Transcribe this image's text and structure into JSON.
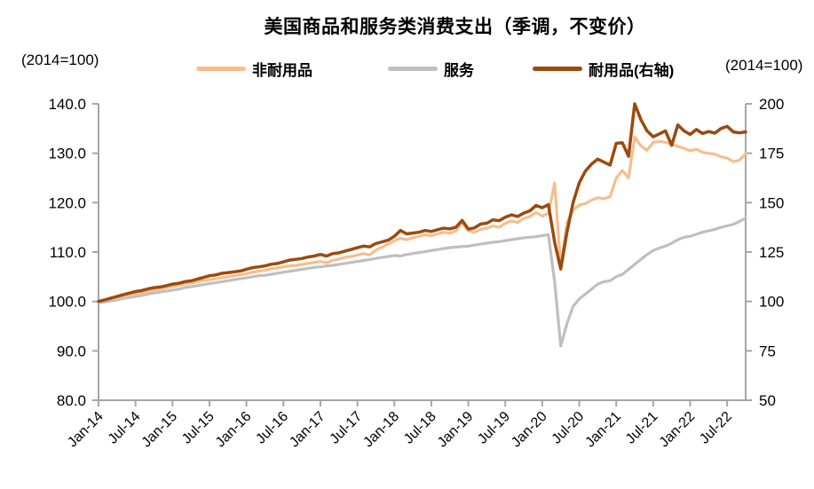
{
  "title": "美国商品和服务类消费支出（季调，不变价）",
  "left_axis_unit": "(2014=100)",
  "right_axis_unit": "(2014=100)",
  "colors": {
    "axis": "#A6A6A6",
    "text": "#000000"
  },
  "chart_data": {
    "type": "line",
    "title": "美国商品和服务类消费支出（季调，不变价）",
    "x_start": "Jan-14",
    "x_end": "Oct-22",
    "x_frequency": "monthly",
    "x_tick_interval_months": 6,
    "x_tick_labels": [
      "Jan-14",
      "Jul-14",
      "Jan-15",
      "Jul-15",
      "Jan-16",
      "Jul-16",
      "Jan-17",
      "Jul-17",
      "Jan-18",
      "Jul-18",
      "Jan-19",
      "Jul-19",
      "Jan-20",
      "Jul-20",
      "Jan-21",
      "Jul-21",
      "Jan-22",
      "Jul-22"
    ],
    "legend_position": "top",
    "grid": false,
    "left_axis": {
      "label": "(2014=100)",
      "min": 80,
      "max": 140,
      "tick_values": [
        140,
        130,
        120,
        110,
        100,
        90,
        80
      ],
      "tick_labels": [
        "140.0",
        "130.0",
        "120.0",
        "110.0",
        "100.0",
        "90.0",
        "80.0"
      ]
    },
    "right_axis": {
      "label": "(2014=100)",
      "min": 50,
      "max": 200,
      "tick_values": [
        200,
        175,
        150,
        125,
        100,
        75,
        50
      ],
      "tick_labels": [
        "200",
        "175",
        "150",
        "125",
        "100",
        "75",
        "50"
      ]
    },
    "series": [
      {
        "name": "服务",
        "axis": "left",
        "color": "#BFBFBF",
        "width": 3.2,
        "values": [
          99.7,
          99.9,
          100.1,
          100.3,
          100.6,
          100.8,
          101.0,
          101.2,
          101.5,
          101.7,
          101.9,
          102.1,
          102.3,
          102.5,
          102.8,
          103.0,
          103.2,
          103.4,
          103.6,
          103.8,
          104.0,
          104.2,
          104.4,
          104.6,
          104.8,
          105.0,
          105.2,
          105.3,
          105.5,
          105.7,
          105.9,
          106.1,
          106.3,
          106.5,
          106.7,
          106.9,
          107.0,
          107.2,
          107.3,
          107.5,
          107.7,
          107.9,
          108.1,
          108.3,
          108.5,
          108.7,
          108.9,
          109.1,
          109.3,
          109.2,
          109.5,
          109.7,
          109.9,
          110.1,
          110.3,
          110.5,
          110.7,
          110.9,
          111.0,
          111.1,
          111.2,
          111.4,
          111.6,
          111.8,
          112.0,
          112.1,
          112.3,
          112.5,
          112.7,
          112.9,
          113.0,
          113.1,
          113.3,
          113.5,
          104.0,
          91.0,
          95.5,
          99.0,
          100.5,
          101.5,
          102.5,
          103.5,
          104.0,
          104.2,
          105.0,
          105.5,
          106.5,
          107.5,
          108.5,
          109.5,
          110.3,
          110.8,
          111.2,
          111.8,
          112.5,
          113.0,
          113.2,
          113.6,
          114.0,
          114.3,
          114.6,
          115.0,
          115.3,
          115.6,
          116.2,
          116.9
        ]
      },
      {
        "name": "非耐用品",
        "axis": "left",
        "color": "#F6BE8D",
        "width": 3.2,
        "values": [
          100.0,
          100.2,
          100.5,
          100.7,
          101.0,
          101.2,
          101.5,
          101.7,
          102.0,
          102.3,
          102.5,
          102.8,
          103.0,
          103.3,
          103.5,
          103.7,
          104.0,
          104.2,
          104.4,
          104.6,
          104.8,
          105.0,
          105.2,
          105.4,
          105.6,
          105.9,
          106.1,
          106.3,
          106.6,
          106.8,
          107.0,
          107.2,
          107.3,
          107.5,
          107.7,
          107.9,
          108.1,
          107.8,
          108.3,
          108.6,
          108.9,
          109.1,
          109.4,
          109.7,
          109.4,
          110.4,
          111.0,
          111.6,
          112.3,
          112.8,
          112.5,
          112.9,
          113.2,
          113.5,
          113.3,
          113.7,
          114.0,
          113.8,
          114.3,
          115.9,
          114.3,
          114.0,
          114.6,
          114.8,
          115.3,
          115.0,
          115.8,
          116.3,
          116.0,
          116.8,
          117.2,
          118.0,
          117.3,
          117.8,
          124.0,
          107.0,
          116.0,
          118.5,
          119.5,
          119.8,
          120.5,
          121.0,
          120.8,
          121.2,
          125.0,
          126.5,
          125.0,
          133.3,
          131.5,
          130.6,
          132.2,
          132.4,
          132.2,
          131.8,
          131.4,
          131.0,
          130.5,
          130.8,
          130.2,
          130.0,
          129.8,
          129.3,
          129.0,
          128.3,
          128.6,
          129.9
        ]
      },
      {
        "name": "耐用品(右轴)",
        "axis": "right",
        "color": "#9A4B0F",
        "width": 3.5,
        "values": [
          100.0,
          100.8,
          101.7,
          102.5,
          103.4,
          104.2,
          105.0,
          105.5,
          106.3,
          107.0,
          107.3,
          108.0,
          108.8,
          109.2,
          110.0,
          110.4,
          111.3,
          112.1,
          113.0,
          113.4,
          114.2,
          114.6,
          115.0,
          115.4,
          116.3,
          117.1,
          117.5,
          118.0,
          118.8,
          119.2,
          120.0,
          120.9,
          121.3,
          121.7,
          122.5,
          123.0,
          123.8,
          123.0,
          124.2,
          124.6,
          125.5,
          126.3,
          127.2,
          128.0,
          127.6,
          129.3,
          130.1,
          131.0,
          133.0,
          135.9,
          134.2,
          134.6,
          135.0,
          135.9,
          135.4,
          136.3,
          137.1,
          136.7,
          137.6,
          141.0,
          136.6,
          137.2,
          139.2,
          139.6,
          141.3,
          140.9,
          142.6,
          143.8,
          143.0,
          144.7,
          145.9,
          148.6,
          147.4,
          149.0,
          130.0,
          116.4,
          135.0,
          150.0,
          160.0,
          166.0,
          169.5,
          172.0,
          170.5,
          169.0,
          180.0,
          180.3,
          173.5,
          200.0,
          192.0,
          186.3,
          183.3,
          184.8,
          186.3,
          179.0,
          189.3,
          186.3,
          184.5,
          187.0,
          185.0,
          186.0,
          185.2,
          187.5,
          188.6,
          185.8,
          185.3,
          185.8
        ]
      }
    ]
  },
  "legend_order": [
    1,
    0,
    2
  ]
}
